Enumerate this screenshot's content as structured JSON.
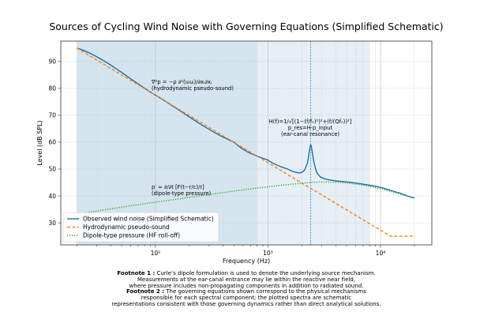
{
  "chart_data": {
    "type": "line",
    "title": "Sources of Cycling Wind Noise with Governing Equations (Simplified Schematic)",
    "xlabel": "Frequency (Hz)",
    "ylabel": "Level (dB SPL)",
    "xscale": "log",
    "xlim": [
      14.4,
      28600
    ],
    "ylim": [
      21.8,
      97.6
    ],
    "xticks": [
      {
        "value": 100,
        "label": "10²"
      },
      {
        "value": 1000,
        "label": "10³"
      },
      {
        "value": 10000,
        "label": "10⁴"
      }
    ],
    "yticks": [
      30,
      40,
      50,
      60,
      70,
      80,
      90
    ],
    "grid": true,
    "legend_placement": "lower-left",
    "shaded_bands": [
      {
        "from": 20,
        "to": 800,
        "color": "#c6dcea"
      },
      {
        "from": 800,
        "to": 8000,
        "color": "#dde9f2"
      }
    ],
    "vline": {
      "x": 2400,
      "color": "#4a90c4",
      "style": "dotted"
    },
    "series": [
      {
        "name": "Observed wind noise (Simplified Schematic)",
        "color": "#1f6fa8",
        "style": "solid",
        "x": [
          20,
          100,
          500,
          1000,
          1500,
          1900,
          2100,
          2250,
          2330,
          2400,
          2470,
          2560,
          2700,
          2900,
          3300,
          4000,
          6000,
          10000,
          15000,
          20000
        ],
        "y": [
          95,
          77.5,
          60,
          53.3,
          50,
          48.6,
          49.5,
          52.5,
          56.5,
          59,
          56.5,
          52.5,
          49,
          47.2,
          46.2,
          45.6,
          44.8,
          43.2,
          41,
          39.3
        ]
      },
      {
        "name": "Hydrodynamic pseudo-sound",
        "color": "#ff7f0e",
        "style": "dashed",
        "x": [
          20,
          12300,
          20000
        ],
        "y": [
          95,
          25,
          25
        ]
      },
      {
        "name": "Dipole-type pressure (HF roll-off)",
        "color": "#2ca02c",
        "style": "dotted",
        "x": [
          20,
          50,
          100,
          200,
          500,
          1000,
          2000,
          3000,
          5000,
          8000,
          12000,
          20000
        ],
        "y": [
          33.5,
          35.8,
          37.7,
          39.5,
          41.8,
          43.4,
          44.7,
          45.2,
          44.8,
          43.6,
          41.8,
          39.4
        ]
      }
    ],
    "annotations": [
      {
        "lines": [
          "∇²p = −ρ ∂²(uᵢuⱼ)/∂xᵢ∂xⱼ",
          "(hydrodynamic pseudo-sound)"
        ]
      },
      {
        "lines": [
          "H(f)=1/√[(1−(f/f₀)²)²+(f/(Qf₀))²]",
          "p_res=H·p_input",
          "(ear-canal resonance)"
        ]
      },
      {
        "lines": [
          "p′ ≈ ∂/∂t [F(t−r/c)/r]",
          "(dipole-type pressure)"
        ]
      }
    ]
  },
  "footnotes": {
    "f1_label": "Footnote 1 :",
    "f1_line1": " Curle’s dipole formulation is used to denote the underlying source mechanism.",
    "f1_line2": "Measurements at the ear-canal entrance may lie within the reactive near field,",
    "f1_line3": "where pressure includes non-propagating components in addition to radiated sound.",
    "f2_label": "Footnote 2 :",
    "f2_line1": " The governing equations shown correspond to the physical mechanisms",
    "f2_line2": "responsible for each spectral component; the plotted spectra are schematic",
    "f2_line3": "representations consistent with those governing dynamics rather than direct analytical solutions."
  }
}
